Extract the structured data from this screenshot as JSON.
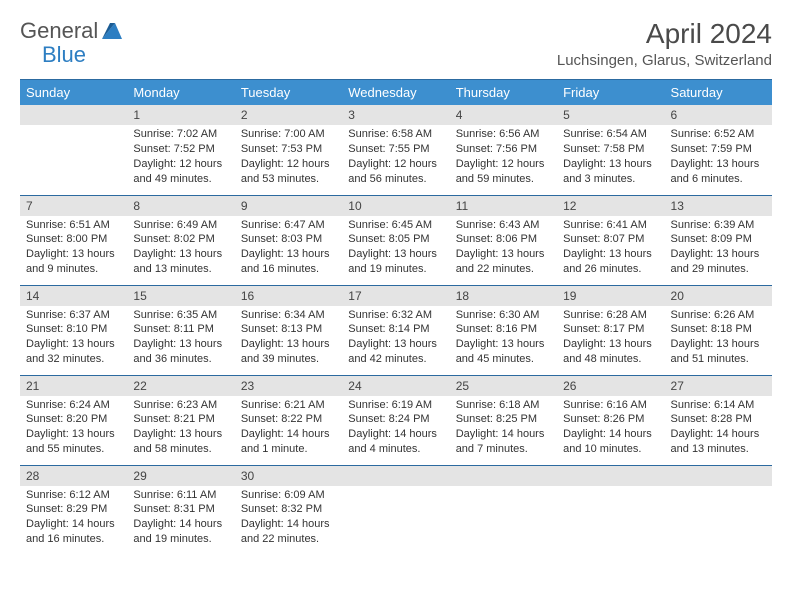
{
  "logo": {
    "part1": "General",
    "part2": "Blue"
  },
  "title": "April 2024",
  "location": "Luchsingen, Glarus, Switzerland",
  "colors": {
    "header_bg": "#3d8fcf",
    "header_border": "#2c6aa0",
    "daynum_bg": "#e4e4e4",
    "text": "#333333",
    "logo_gray": "#555555",
    "logo_blue": "#2d7ec2"
  },
  "day_headers": [
    "Sunday",
    "Monday",
    "Tuesday",
    "Wednesday",
    "Thursday",
    "Friday",
    "Saturday"
  ],
  "weeks": [
    [
      {
        "n": "",
        "sr": "",
        "ss": "",
        "dl": ""
      },
      {
        "n": "1",
        "sr": "Sunrise: 7:02 AM",
        "ss": "Sunset: 7:52 PM",
        "dl": "Daylight: 12 hours and 49 minutes."
      },
      {
        "n": "2",
        "sr": "Sunrise: 7:00 AM",
        "ss": "Sunset: 7:53 PM",
        "dl": "Daylight: 12 hours and 53 minutes."
      },
      {
        "n": "3",
        "sr": "Sunrise: 6:58 AM",
        "ss": "Sunset: 7:55 PM",
        "dl": "Daylight: 12 hours and 56 minutes."
      },
      {
        "n": "4",
        "sr": "Sunrise: 6:56 AM",
        "ss": "Sunset: 7:56 PM",
        "dl": "Daylight: 12 hours and 59 minutes."
      },
      {
        "n": "5",
        "sr": "Sunrise: 6:54 AM",
        "ss": "Sunset: 7:58 PM",
        "dl": "Daylight: 13 hours and 3 minutes."
      },
      {
        "n": "6",
        "sr": "Sunrise: 6:52 AM",
        "ss": "Sunset: 7:59 PM",
        "dl": "Daylight: 13 hours and 6 minutes."
      }
    ],
    [
      {
        "n": "7",
        "sr": "Sunrise: 6:51 AM",
        "ss": "Sunset: 8:00 PM",
        "dl": "Daylight: 13 hours and 9 minutes."
      },
      {
        "n": "8",
        "sr": "Sunrise: 6:49 AM",
        "ss": "Sunset: 8:02 PM",
        "dl": "Daylight: 13 hours and 13 minutes."
      },
      {
        "n": "9",
        "sr": "Sunrise: 6:47 AM",
        "ss": "Sunset: 8:03 PM",
        "dl": "Daylight: 13 hours and 16 minutes."
      },
      {
        "n": "10",
        "sr": "Sunrise: 6:45 AM",
        "ss": "Sunset: 8:05 PM",
        "dl": "Daylight: 13 hours and 19 minutes."
      },
      {
        "n": "11",
        "sr": "Sunrise: 6:43 AM",
        "ss": "Sunset: 8:06 PM",
        "dl": "Daylight: 13 hours and 22 minutes."
      },
      {
        "n": "12",
        "sr": "Sunrise: 6:41 AM",
        "ss": "Sunset: 8:07 PM",
        "dl": "Daylight: 13 hours and 26 minutes."
      },
      {
        "n": "13",
        "sr": "Sunrise: 6:39 AM",
        "ss": "Sunset: 8:09 PM",
        "dl": "Daylight: 13 hours and 29 minutes."
      }
    ],
    [
      {
        "n": "14",
        "sr": "Sunrise: 6:37 AM",
        "ss": "Sunset: 8:10 PM",
        "dl": "Daylight: 13 hours and 32 minutes."
      },
      {
        "n": "15",
        "sr": "Sunrise: 6:35 AM",
        "ss": "Sunset: 8:11 PM",
        "dl": "Daylight: 13 hours and 36 minutes."
      },
      {
        "n": "16",
        "sr": "Sunrise: 6:34 AM",
        "ss": "Sunset: 8:13 PM",
        "dl": "Daylight: 13 hours and 39 minutes."
      },
      {
        "n": "17",
        "sr": "Sunrise: 6:32 AM",
        "ss": "Sunset: 8:14 PM",
        "dl": "Daylight: 13 hours and 42 minutes."
      },
      {
        "n": "18",
        "sr": "Sunrise: 6:30 AM",
        "ss": "Sunset: 8:16 PM",
        "dl": "Daylight: 13 hours and 45 minutes."
      },
      {
        "n": "19",
        "sr": "Sunrise: 6:28 AM",
        "ss": "Sunset: 8:17 PM",
        "dl": "Daylight: 13 hours and 48 minutes."
      },
      {
        "n": "20",
        "sr": "Sunrise: 6:26 AM",
        "ss": "Sunset: 8:18 PM",
        "dl": "Daylight: 13 hours and 51 minutes."
      }
    ],
    [
      {
        "n": "21",
        "sr": "Sunrise: 6:24 AM",
        "ss": "Sunset: 8:20 PM",
        "dl": "Daylight: 13 hours and 55 minutes."
      },
      {
        "n": "22",
        "sr": "Sunrise: 6:23 AM",
        "ss": "Sunset: 8:21 PM",
        "dl": "Daylight: 13 hours and 58 minutes."
      },
      {
        "n": "23",
        "sr": "Sunrise: 6:21 AM",
        "ss": "Sunset: 8:22 PM",
        "dl": "Daylight: 14 hours and 1 minute."
      },
      {
        "n": "24",
        "sr": "Sunrise: 6:19 AM",
        "ss": "Sunset: 8:24 PM",
        "dl": "Daylight: 14 hours and 4 minutes."
      },
      {
        "n": "25",
        "sr": "Sunrise: 6:18 AM",
        "ss": "Sunset: 8:25 PM",
        "dl": "Daylight: 14 hours and 7 minutes."
      },
      {
        "n": "26",
        "sr": "Sunrise: 6:16 AM",
        "ss": "Sunset: 8:26 PM",
        "dl": "Daylight: 14 hours and 10 minutes."
      },
      {
        "n": "27",
        "sr": "Sunrise: 6:14 AM",
        "ss": "Sunset: 8:28 PM",
        "dl": "Daylight: 14 hours and 13 minutes."
      }
    ],
    [
      {
        "n": "28",
        "sr": "Sunrise: 6:12 AM",
        "ss": "Sunset: 8:29 PM",
        "dl": "Daylight: 14 hours and 16 minutes."
      },
      {
        "n": "29",
        "sr": "Sunrise: 6:11 AM",
        "ss": "Sunset: 8:31 PM",
        "dl": "Daylight: 14 hours and 19 minutes."
      },
      {
        "n": "30",
        "sr": "Sunrise: 6:09 AM",
        "ss": "Sunset: 8:32 PM",
        "dl": "Daylight: 14 hours and 22 minutes."
      },
      {
        "n": "",
        "sr": "",
        "ss": "",
        "dl": ""
      },
      {
        "n": "",
        "sr": "",
        "ss": "",
        "dl": ""
      },
      {
        "n": "",
        "sr": "",
        "ss": "",
        "dl": ""
      },
      {
        "n": "",
        "sr": "",
        "ss": "",
        "dl": ""
      }
    ]
  ]
}
